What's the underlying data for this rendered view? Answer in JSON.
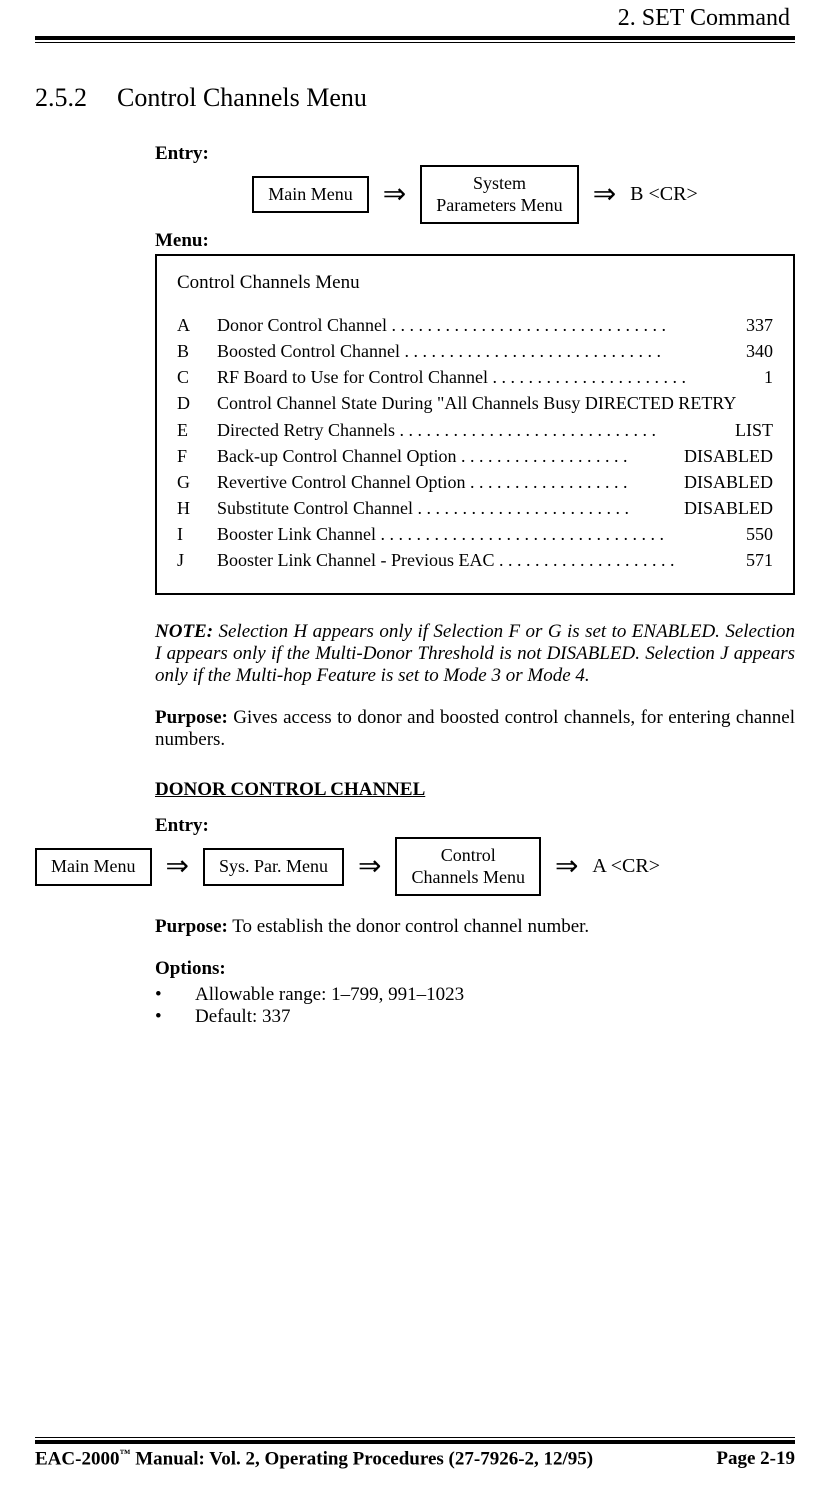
{
  "header": {
    "chapter": "2.  SET Command"
  },
  "section": {
    "number": "2.5.2",
    "title": "Control Channels Menu"
  },
  "entry1": {
    "label": "Entry:",
    "box1": "Main Menu",
    "box2": "System\nParameters Menu",
    "end": "B <CR>"
  },
  "menuLabel": "Menu:",
  "menuBox": {
    "title": "Control Channels Menu",
    "items": [
      {
        "key": "A",
        "desc": "Donor Control Channel . . . . . . . . . . . . . . . . . . . . . . . . . . . . . . .",
        "val": "337"
      },
      {
        "key": "B",
        "desc": "Boosted Control Channel   . . . . . . . . . . . . . . . . . . . . . . . . . . . . .",
        "val": "340"
      },
      {
        "key": "C",
        "desc": "RF Board to Use for Control Channel   . . . . . . . . . . . . . . . . . . . . . .",
        "val": "1"
      },
      {
        "key": "D",
        "desc": "Control Channel State During \"All Channels Busy    DIRECTED RETRY",
        "val": ""
      },
      {
        "key": "E",
        "desc": "Directed Retry Channels  . . . . . . . . . . . . . . . . . . . . . . . . . . . . .",
        "val": "LIST"
      },
      {
        "key": "F",
        "desc": "Back-up Control Channel Option  . . . . . . . . . . . . . . . . . . .",
        "val": "DISABLED"
      },
      {
        "key": "G",
        "desc": "Revertive Control Channel Option  . . . . . . . . . . . . . . . . . .",
        "val": "DISABLED"
      },
      {
        "key": "H",
        "desc": "Substitute Control Channel   . . . . . . . . . . . . . . . . . . . . . . . .",
        "val": "DISABLED"
      },
      {
        "key": "I",
        "desc": "Booster Link Channel . . . . . . . . . . . . . . . . . . . . . . . . . . . . . . . .",
        "val": "550"
      },
      {
        "key": "J",
        "desc": "Booster Link Channel - Previous EAC  . . . . . . . . . . . . . . . . . . . .",
        "val": "571"
      }
    ]
  },
  "noteLabel": "NOTE:",
  "noteText": "  Selection H appears only if Selection F or G is set to ENABLED. Selection I appears only if the Multi-Donor Threshold is not DISABLED. Selection J appears only if the Multi-hop Feature is set to Mode 3 or Mode 4.",
  "purpose1": {
    "label": "Purpose:",
    "text": "  Gives access to donor and boosted control channels, for entering channel numbers."
  },
  "subheading": "DONOR CONTROL CHANNEL",
  "entry2": {
    "label": "Entry:",
    "box1": "Main Menu",
    "box2": "Sys. Par. Menu",
    "box3": "Control\nChannels Menu",
    "end": "A <CR>"
  },
  "purpose2": {
    "label": "Purpose:",
    "text": "  To establish the donor control channel number."
  },
  "options": {
    "label": "Options:",
    "items": [
      "Allowable range:  1–799, 991–1023",
      "Default:  337"
    ]
  },
  "footer": {
    "left": "EAC-2000™ Manual:  Vol. 2, Operating Procedures (27-7926-2, 12/95)",
    "right": "Page 2-19"
  }
}
